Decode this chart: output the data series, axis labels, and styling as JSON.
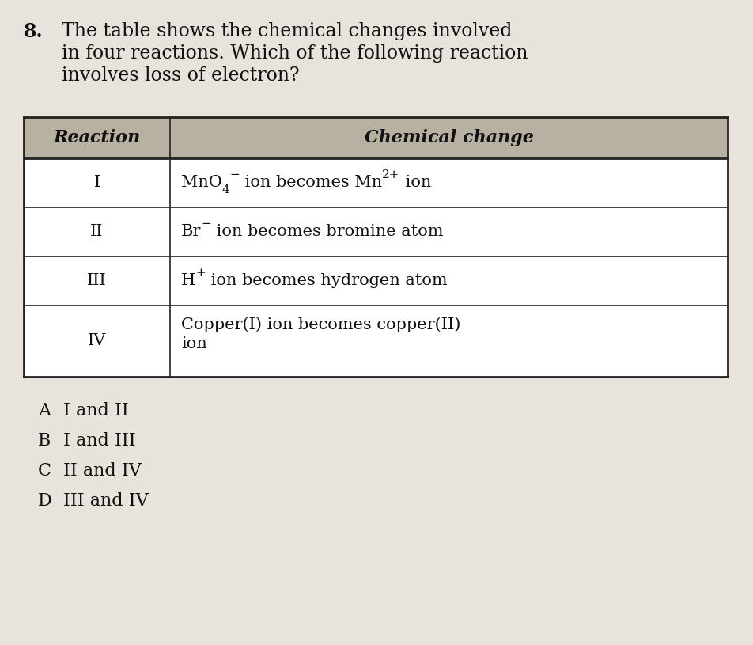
{
  "question_number": "8.",
  "question_text_line1": "The table shows the chemical changes involved",
  "question_text_line2": "in four reactions. Which of the following reaction",
  "question_text_line3": "involves loss of electron?",
  "header_col1": "Reaction",
  "header_col2": "Chemical change",
  "bg_color": "#e8e4dc",
  "header_bg": "#b8b0a0",
  "table_bg": "#ffffff",
  "border_color": "#222222",
  "text_color": "#111111",
  "fs_question": 17,
  "fs_table": 15,
  "fs_sup": 11,
  "options": [
    [
      "A",
      "I and II"
    ],
    [
      "B",
      "I and III"
    ],
    [
      "C",
      "II and IV"
    ],
    [
      "D",
      "III and IV"
    ]
  ]
}
